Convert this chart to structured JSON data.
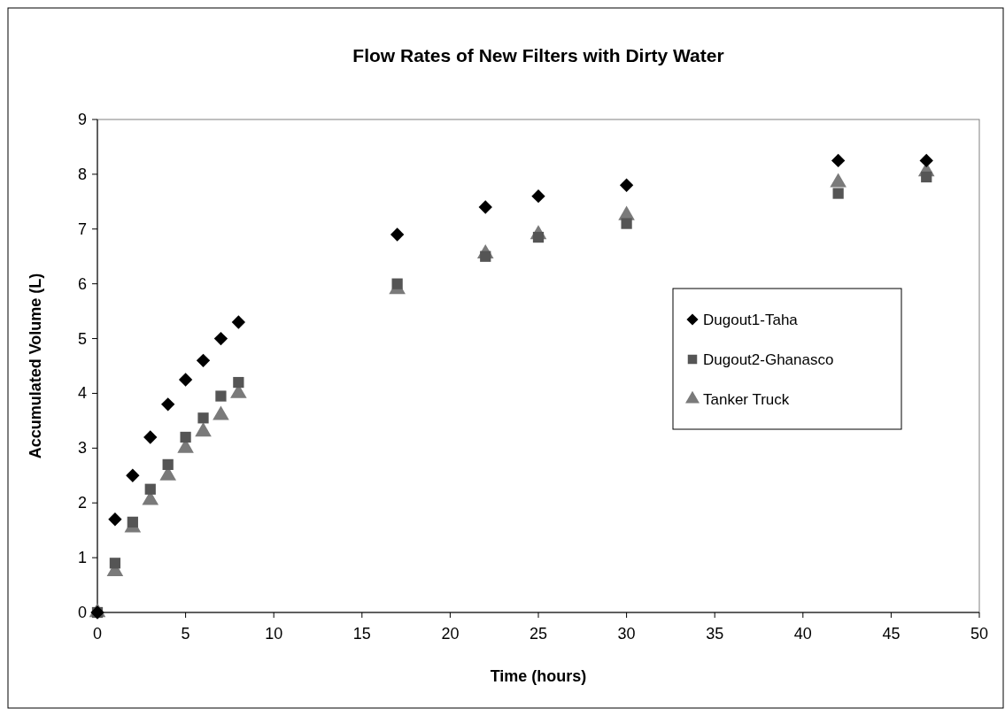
{
  "chart_data": {
    "type": "scatter",
    "title": "Flow Rates of New Filters with Dirty Water",
    "xlabel": "Time (hours)",
    "ylabel": "Accumulated Volume (L)",
    "xlim": [
      0,
      50
    ],
    "xticks": [
      0,
      5,
      10,
      15,
      20,
      25,
      30,
      35,
      40,
      45,
      50
    ],
    "ylim": [
      0,
      9
    ],
    "yticks": [
      0,
      1,
      2,
      3,
      4,
      5,
      6,
      7,
      8,
      9
    ],
    "grid": false,
    "legend": "right",
    "x": [
      0,
      1,
      2,
      3,
      4,
      5,
      6,
      7,
      8,
      17,
      22,
      25,
      30,
      42,
      47
    ],
    "series": [
      {
        "name": "Dugout1-Taha",
        "color": "#000000",
        "marker": "diamond",
        "values": [
          0,
          1.7,
          2.5,
          3.2,
          3.8,
          4.25,
          4.6,
          5.0,
          5.3,
          6.9,
          7.4,
          7.6,
          7.8,
          8.25,
          8.25
        ]
      },
      {
        "name": "Dugout2-Ghanasco",
        "color": "#555555",
        "marker": "square",
        "values": [
          0,
          0.9,
          1.65,
          2.25,
          2.7,
          3.2,
          3.55,
          3.95,
          4.2,
          6.0,
          6.5,
          6.85,
          7.1,
          7.65,
          7.95
        ]
      },
      {
        "name": "Tanker Truck",
        "color": "#7a7a7a",
        "marker": "triangle",
        "values": [
          0,
          0.75,
          1.55,
          2.05,
          2.5,
          3.0,
          3.3,
          3.6,
          4.0,
          5.9,
          6.55,
          6.9,
          7.25,
          7.85,
          8.05
        ]
      }
    ]
  }
}
